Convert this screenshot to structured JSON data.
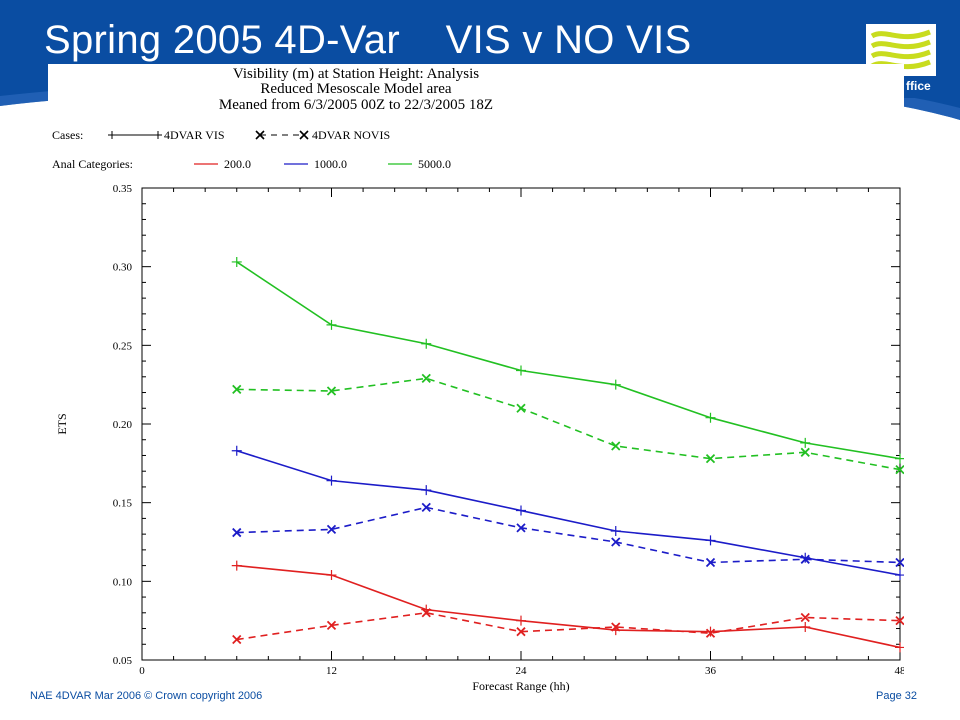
{
  "slide": {
    "title": "Spring 2005 4D-Var    VIS v NO VIS",
    "logo_text": "ffice",
    "footer_left": "NAE 4DVAR Mar 2006 © Crown copyright 2006",
    "footer_right": "Page 32",
    "colors": {
      "background_blue": "#0a4da2",
      "logo_green": "#c8dc1e",
      "footer_text": "#0a4da2"
    }
  },
  "chart_data": {
    "type": "line",
    "title": "Visibility (m) at Station Height:  Analysis",
    "subtitle_1": "Reduced Mesoscale Model area",
    "subtitle_2": "Meaned from 6/3/2005 00Z to 22/3/2005 18Z",
    "xlabel": "Forecast Range (hh)",
    "ylabel": "ETS",
    "xlim": [
      0,
      48
    ],
    "ylim": [
      0.05,
      0.35
    ],
    "xticks": [
      "0",
      "12",
      "24",
      "36",
      "48"
    ],
    "yticks": [
      "0.05",
      "0.10",
      "0.15",
      "0.20",
      "0.25",
      "0.30",
      "0.35"
    ],
    "legend_cases_label": "Cases:",
    "legend_categories_label": "Anal Categories:",
    "cases": [
      {
        "name": "4DVAR VIS",
        "style": "solid",
        "marker": "plus"
      },
      {
        "name": "4DVAR NOVIS",
        "style": "dashed",
        "marker": "cross"
      }
    ],
    "categories": [
      {
        "name": "200.0",
        "color": "#e02020"
      },
      {
        "name": "1000.0",
        "color": "#1c1cc8"
      },
      {
        "name": "5000.0",
        "color": "#22c022"
      }
    ],
    "x": [
      6,
      12,
      18,
      24,
      30,
      36,
      42,
      48
    ],
    "series": [
      {
        "case": "4DVAR VIS",
        "category": "5000.0",
        "values": [
          0.303,
          0.263,
          0.251,
          0.234,
          0.225,
          0.204,
          0.188,
          0.178
        ]
      },
      {
        "case": "4DVAR NOVIS",
        "category": "5000.0",
        "values": [
          0.222,
          0.221,
          0.229,
          0.21,
          0.186,
          0.178,
          0.182,
          0.171
        ]
      },
      {
        "case": "4DVAR VIS",
        "category": "1000.0",
        "values": [
          0.183,
          0.164,
          0.158,
          0.145,
          0.132,
          0.126,
          0.115,
          0.104
        ]
      },
      {
        "case": "4DVAR NOVIS",
        "category": "1000.0",
        "values": [
          0.131,
          0.133,
          0.147,
          0.134,
          0.125,
          0.112,
          0.114,
          0.112
        ]
      },
      {
        "case": "4DVAR VIS",
        "category": "200.0",
        "values": [
          0.11,
          0.104,
          0.082,
          0.075,
          0.069,
          0.068,
          0.071,
          0.058
        ]
      },
      {
        "case": "4DVAR NOVIS",
        "category": "200.0",
        "values": [
          0.063,
          0.072,
          0.08,
          0.068,
          0.071,
          0.067,
          0.077,
          0.075
        ]
      }
    ],
    "grid": false,
    "legend_position": "top-left"
  }
}
